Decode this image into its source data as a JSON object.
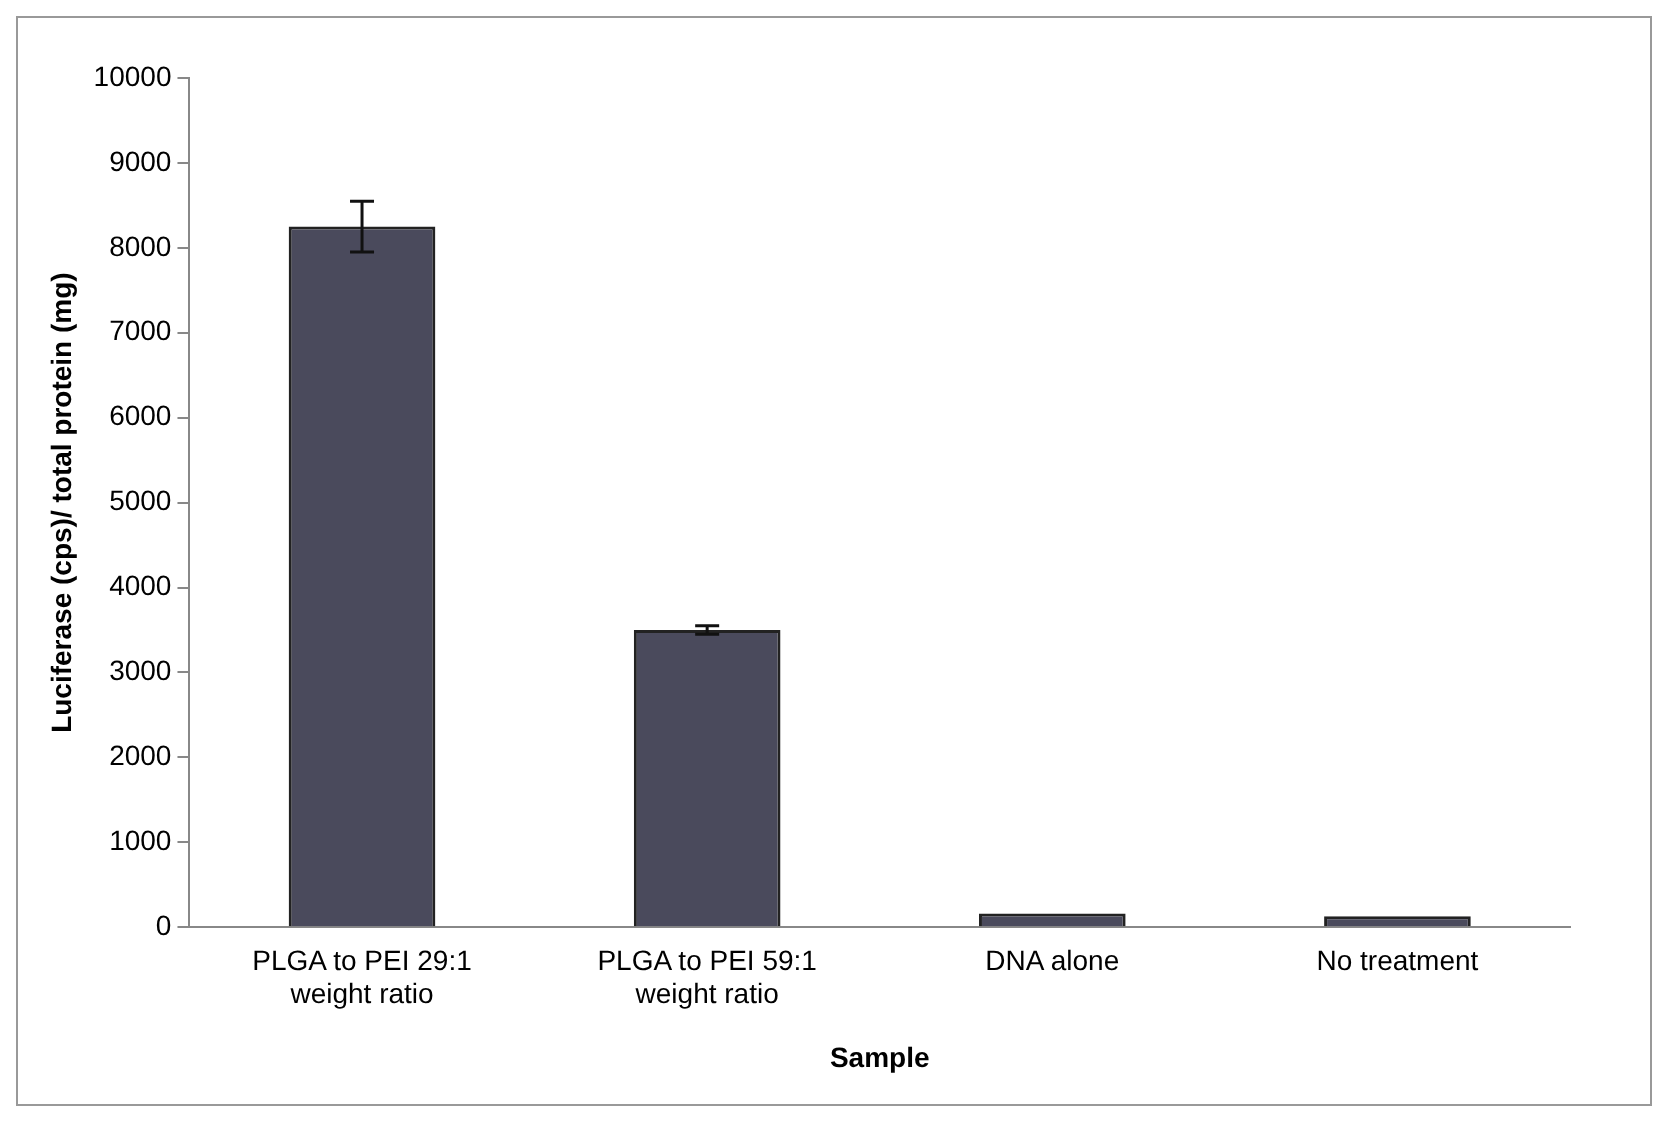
{
  "chart_data": {
    "type": "bar",
    "xlabel": "Sample",
    "ylabel": "Luciferase (cps)/ total protein (mg)",
    "categories": [
      "PLGA to PEI 29:1 weight ratio",
      "PLGA to PEI 59:1 weight ratio",
      "DNA alone",
      "No treatment"
    ],
    "values": [
      8250,
      3500,
      160,
      130
    ],
    "errors": [
      300,
      50,
      null,
      null
    ],
    "color": "#4a4a5c",
    "ylim": [
      0,
      10000
    ],
    "yticks": [
      0,
      1000,
      2000,
      3000,
      4000,
      5000,
      6000,
      7000,
      8000,
      9000,
      10000
    ],
    "grid": false,
    "legend": false
  }
}
